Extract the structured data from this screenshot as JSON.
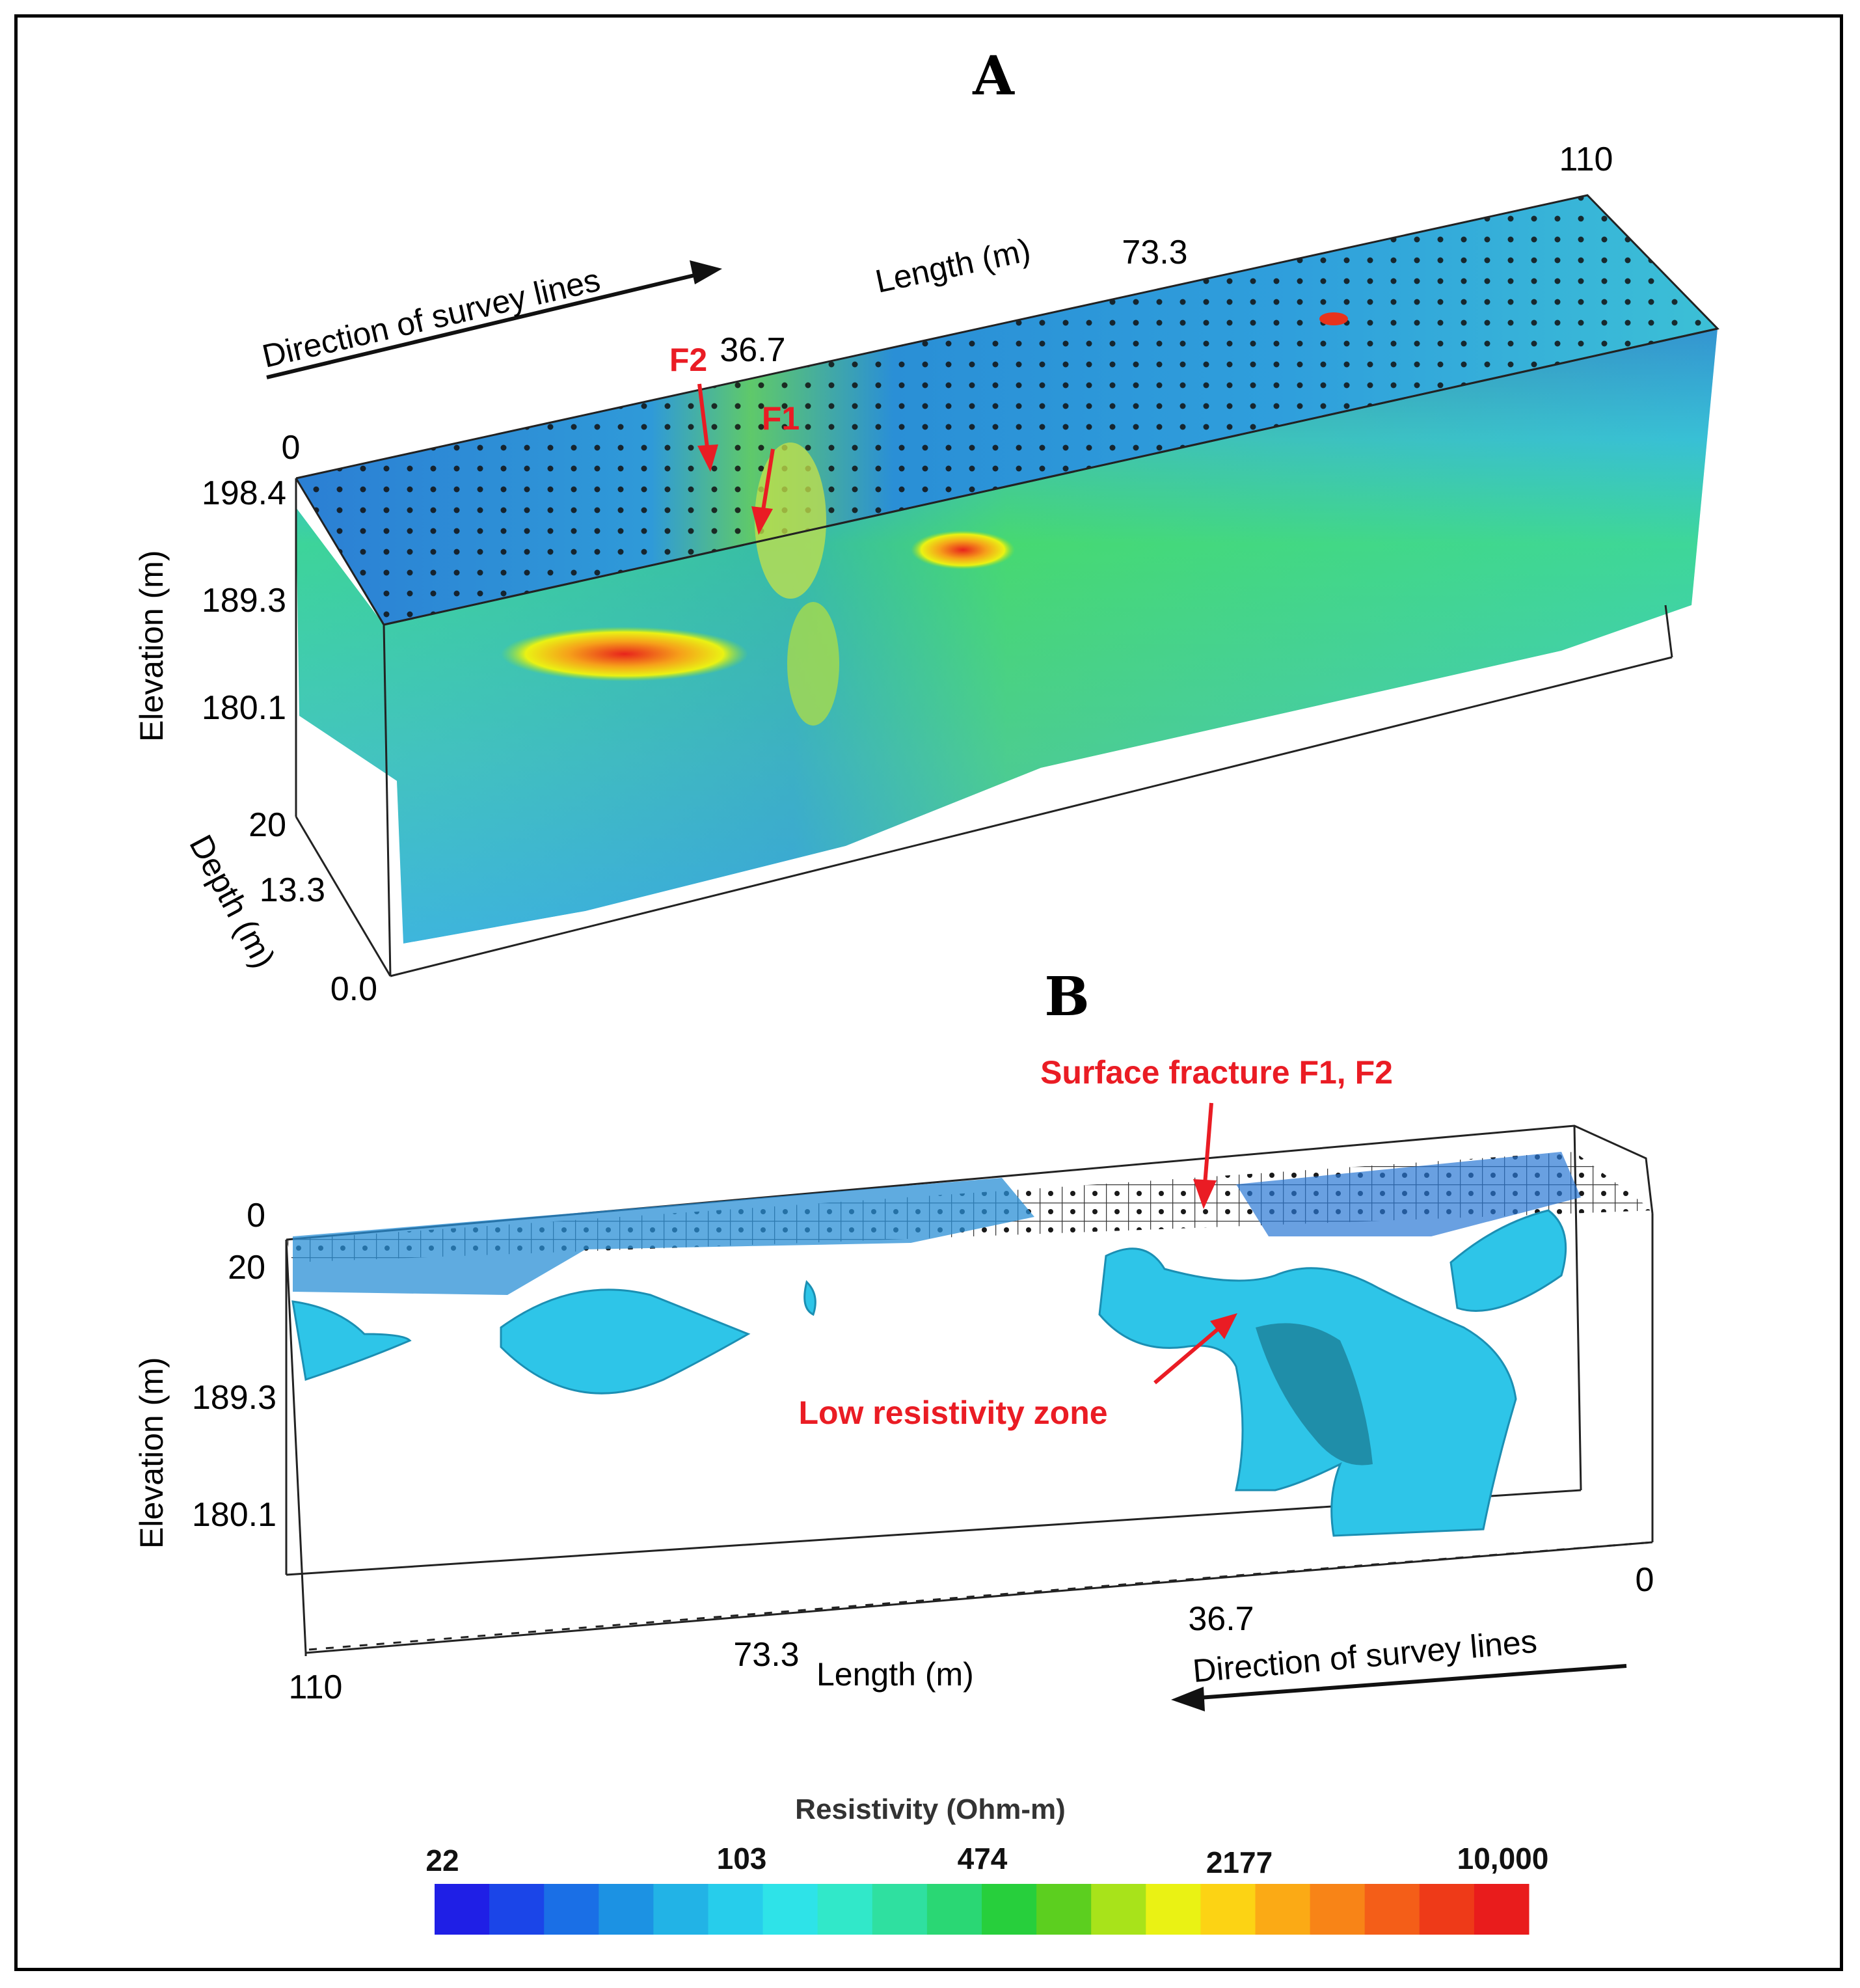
{
  "panel_a": {
    "letter": "A",
    "length_label": "Length (m)",
    "direction_label": "Direction  of survey lines",
    "length_ticks": [
      "0",
      "36.7",
      "73.3",
      "110"
    ],
    "elevation_label": "Elevation  (m)",
    "elevation_ticks": [
      "198.4",
      "189.3",
      "180.1"
    ],
    "depth_label": "Depth (m)",
    "depth_ticks": [
      "20",
      "13.3",
      "0.0"
    ],
    "annotations": [
      "F2",
      "F1"
    ]
  },
  "panel_b": {
    "letter": "B",
    "length_label": "Length (m)",
    "direction_label": "Direction  of survey lines",
    "length_ticks": [
      "110",
      "73.3",
      "36.7",
      "0"
    ],
    "elevation_label": "Elevation  (m)",
    "elevation_ticks": [
      "0",
      "20",
      "189.3",
      "180.1"
    ],
    "annotations": [
      "Surface fracture F1, F2",
      "Low resistivity zone"
    ]
  },
  "colorbar": {
    "title": "Resistivity (Ohm-m)",
    "ticks": [
      "22",
      "103",
      "474",
      "2177",
      "10,000"
    ],
    "colors": [
      "#1f1fe6",
      "#1b45e8",
      "#1a6fe6",
      "#1c92e3",
      "#22b3e6",
      "#27cdeb",
      "#2ee3e8",
      "#31e8c9",
      "#2fe0a0",
      "#2ad774",
      "#27cf3c",
      "#5ccf1f",
      "#a8e31a",
      "#eaf214",
      "#fcd314",
      "#fbaa15",
      "#f88417",
      "#f45e18",
      "#ee3a18",
      "#e91c1c"
    ]
  },
  "colors": {
    "annotation": "#ea1c24",
    "iso_surface": "#2ec5e8"
  }
}
